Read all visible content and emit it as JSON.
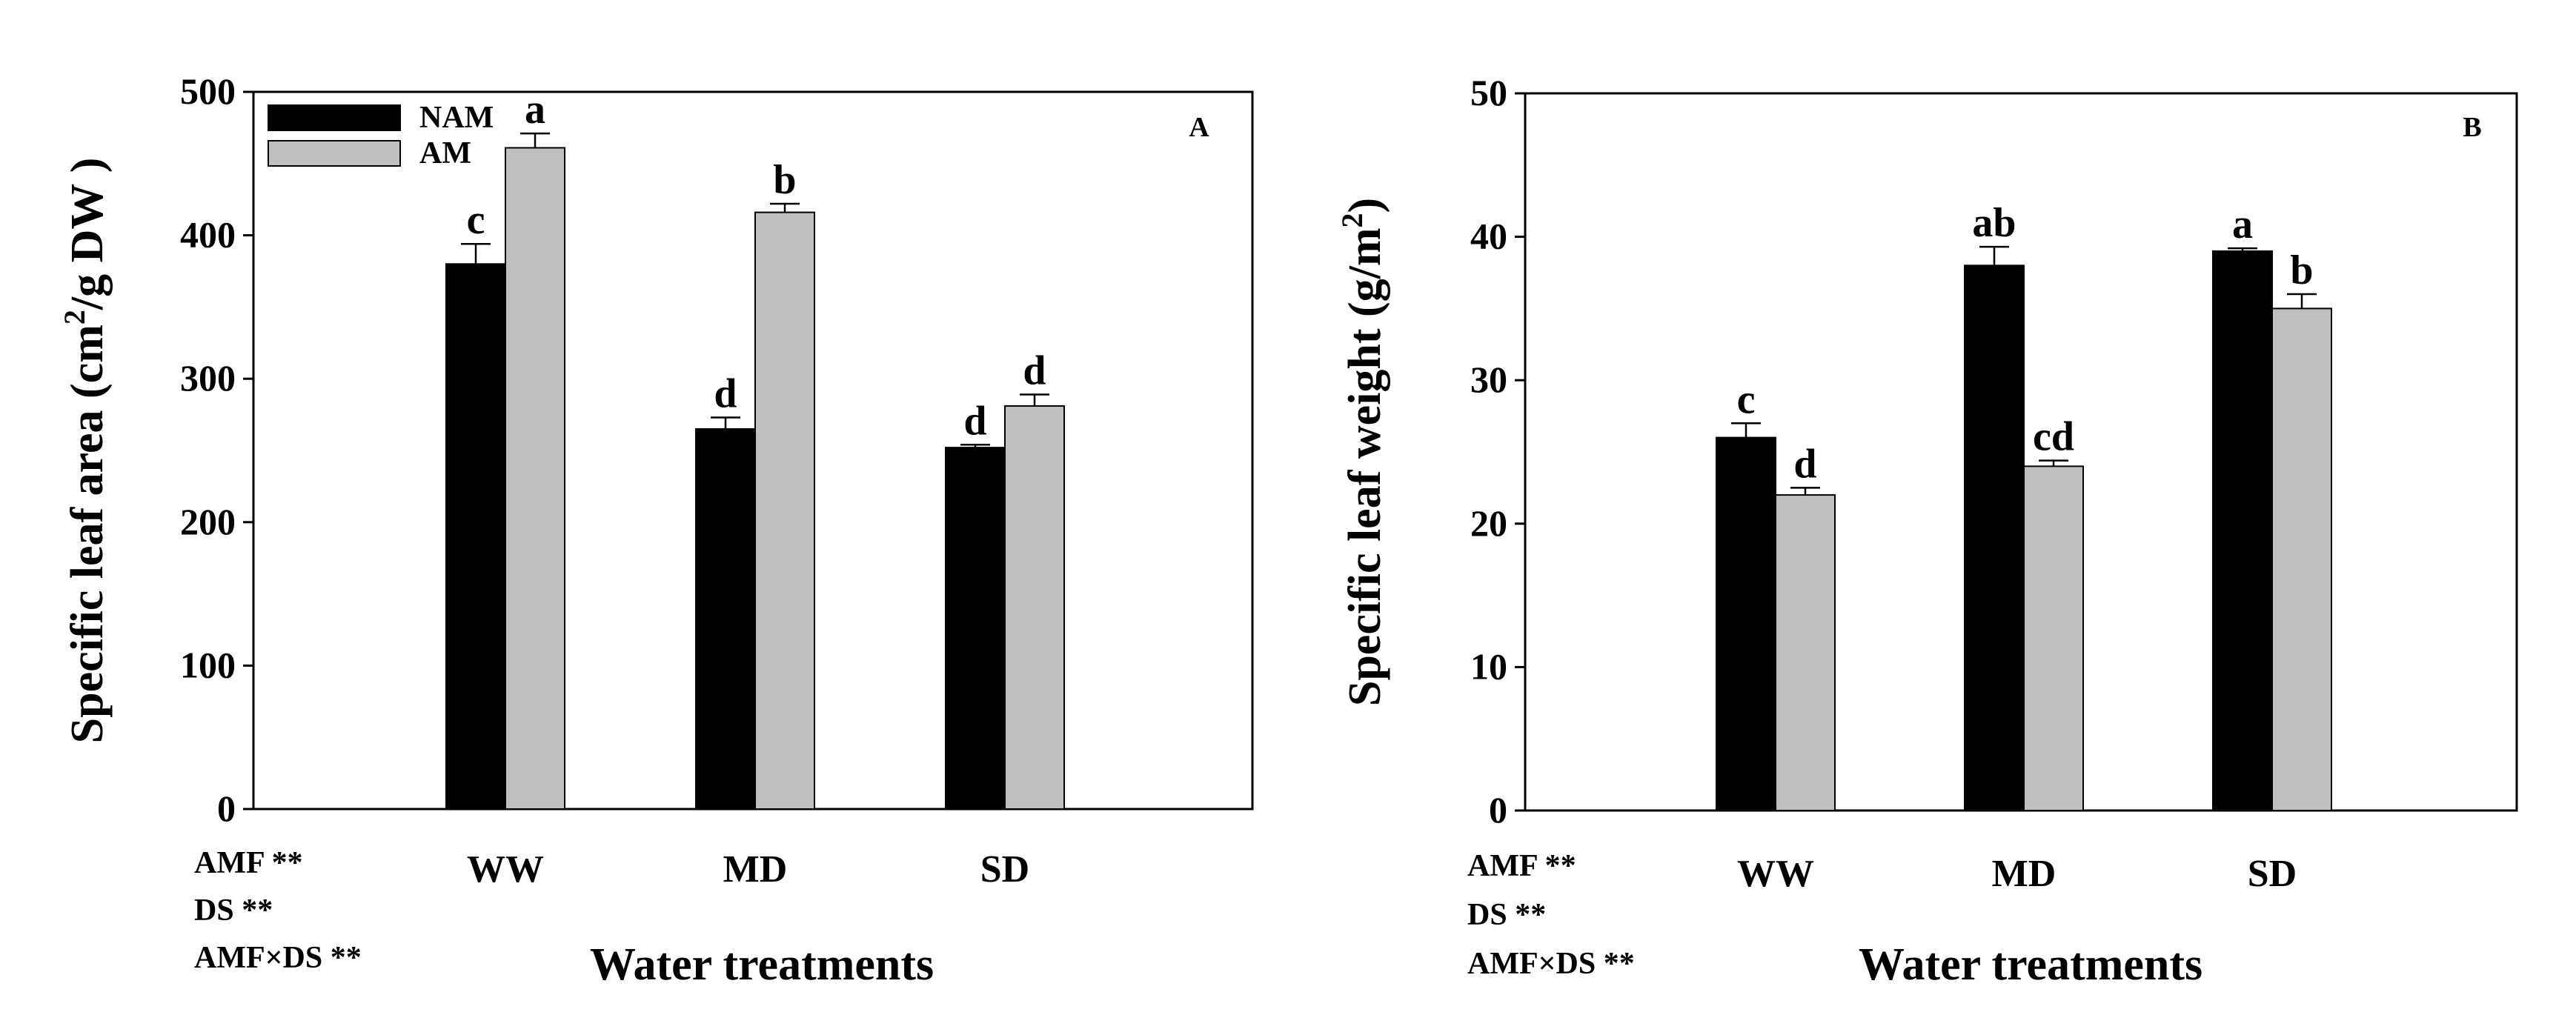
{
  "colors": {
    "nam": "#000000",
    "am": "#c0c0c0",
    "axis": "#000000"
  },
  "chart_data": [
    {
      "type": "bar",
      "panel_label": "A",
      "categories": [
        "WW",
        "MD",
        "SD"
      ],
      "series": [
        {
          "name": "NAM",
          "values": [
            380,
            265,
            252
          ],
          "errors": [
            14,
            8,
            2
          ],
          "letters": [
            "c",
            "d",
            "d"
          ]
        },
        {
          "name": "AM",
          "values": [
            461,
            416,
            281
          ],
          "errors": [
            10,
            6,
            8
          ],
          "letters": [
            "a",
            "b",
            "d"
          ]
        }
      ],
      "ylabel_prefix": "Specific leaf area (cm",
      "ylabel_sup": "2",
      "ylabel_suffix": "/g DW )",
      "xlabel": "Water treatments",
      "ylim": [
        0,
        500
      ],
      "yticks": [
        "0",
        "100",
        "200",
        "300",
        "400",
        "500"
      ],
      "legend": [
        "NAM",
        "AM"
      ],
      "stats": [
        "AMF **",
        "DS **",
        "AMF×DS **"
      ]
    },
    {
      "type": "bar",
      "panel_label": "B",
      "categories": [
        "WW",
        "MD",
        "SD"
      ],
      "series": [
        {
          "name": "NAM",
          "values": [
            26,
            38,
            39
          ],
          "errors": [
            1,
            1.3,
            0.2
          ],
          "letters": [
            "c",
            "ab",
            "a"
          ]
        },
        {
          "name": "AM",
          "values": [
            22,
            24,
            35
          ],
          "errors": [
            0.5,
            0.4,
            1
          ],
          "letters": [
            "d",
            "cd",
            "b"
          ]
        }
      ],
      "ylabel_prefix": "Specific leaf weight (g/m",
      "ylabel_sup": "2",
      "ylabel_suffix": ")",
      "xlabel": "Water treatments",
      "ylim": [
        0,
        50
      ],
      "yticks": [
        "0",
        "10",
        "20",
        "30",
        "40",
        "50"
      ],
      "stats": [
        "AMF **",
        "DS **",
        "AMF×DS **"
      ]
    }
  ]
}
